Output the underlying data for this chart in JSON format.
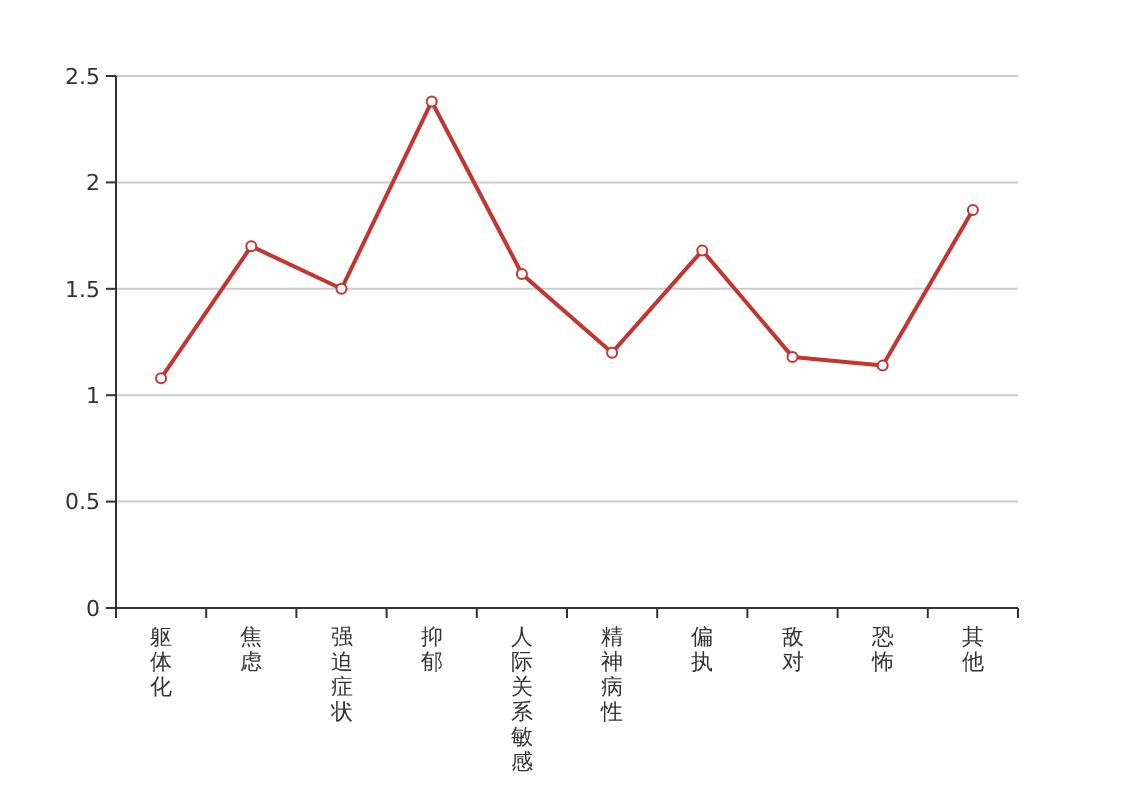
{
  "chart_data": {
    "type": "line",
    "categories": [
      "躯体化",
      "焦虑",
      "强迫症状",
      "抑郁",
      "人际关系敏感",
      "精神病性",
      "偏执",
      "敌对",
      "恐怖",
      "其他"
    ],
    "series": [
      {
        "color": "#c23531",
        "values": [
          1.08,
          1.7,
          1.5,
          2.38,
          1.57,
          1.2,
          1.68,
          1.18,
          1.14,
          1.87
        ]
      }
    ],
    "ylim": [
      0,
      2.5
    ],
    "yticks": [
      0,
      0.5,
      1,
      1.5,
      2,
      2.5
    ],
    "grid": "y",
    "marker": "circle",
    "line_style": "solid"
  }
}
